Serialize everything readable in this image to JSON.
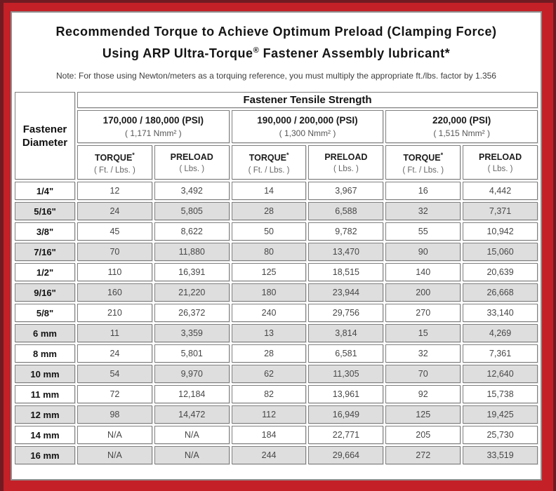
{
  "colors": {
    "frame_red": "#c32127",
    "frame_maroon": "#701b22",
    "panel_border_gray": "#8f8f8f",
    "cell_border_gray": "#7f7f7f",
    "header_gray": "#d9d9d9",
    "stripe_gray": "#dedede"
  },
  "title": {
    "line1": "Recommended Torque to Achieve Optimum Preload (Clamping Force)",
    "line2_pre": "Using ARP Ultra-Torque",
    "line2_reg": "®",
    "line2_post": " Fastener Assembly lubricant*"
  },
  "note": "Note: For those using Newton/meters as a torquing reference, you must multiply the appropriate ft./lbs. factor by 1.356",
  "table": {
    "corner_header": {
      "line1": "Fastener",
      "line2": "Diameter"
    },
    "tensile_header": "Fastener Tensile Strength",
    "groups": [
      {
        "psi": "170,000 / 180,000 (PSI)",
        "nmm": "( 1,171 Nmm² )"
      },
      {
        "psi": "190,000 / 200,000 (PSI)",
        "nmm": "( 1,300 Nmm² )"
      },
      {
        "psi": "220,000 (PSI)",
        "nmm": "( 1,515 Nmm² )"
      }
    ],
    "col_headers": {
      "torque_label": "TORQUE",
      "torque_star": "*",
      "torque_sub": "( Ft. / Lbs. )",
      "preload_label": "PRELOAD",
      "preload_sub": "( Lbs. )"
    },
    "rows": [
      {
        "diameter": "1/4\"",
        "values": [
          "12",
          "3,492",
          "14",
          "3,967",
          "16",
          "4,442"
        ]
      },
      {
        "diameter": "5/16\"",
        "values": [
          "24",
          "5,805",
          "28",
          "6,588",
          "32",
          "7,371"
        ]
      },
      {
        "diameter": "3/8\"",
        "values": [
          "45",
          "8,622",
          "50",
          "9,782",
          "55",
          "10,942"
        ]
      },
      {
        "diameter": "7/16\"",
        "values": [
          "70",
          "11,880",
          "80",
          "13,470",
          "90",
          "15,060"
        ]
      },
      {
        "diameter": "1/2\"",
        "values": [
          "110",
          "16,391",
          "125",
          "18,515",
          "140",
          "20,639"
        ]
      },
      {
        "diameter": "9/16\"",
        "values": [
          "160",
          "21,220",
          "180",
          "23,944",
          "200",
          "26,668"
        ]
      },
      {
        "diameter": "5/8\"",
        "values": [
          "210",
          "26,372",
          "240",
          "29,756",
          "270",
          "33,140"
        ]
      },
      {
        "diameter": "6 mm",
        "values": [
          "11",
          "3,359",
          "13",
          "3,814",
          "15",
          "4,269"
        ]
      },
      {
        "diameter": "8 mm",
        "values": [
          "24",
          "5,801",
          "28",
          "6,581",
          "32",
          "7,361"
        ]
      },
      {
        "diameter": "10 mm",
        "values": [
          "54",
          "9,970",
          "62",
          "11,305",
          "70",
          "12,640"
        ]
      },
      {
        "diameter": "11 mm",
        "values": [
          "72",
          "12,184",
          "82",
          "13,961",
          "92",
          "15,738"
        ]
      },
      {
        "diameter": "12 mm",
        "values": [
          "98",
          "14,472",
          "112",
          "16,949",
          "125",
          "19,425"
        ]
      },
      {
        "diameter": "14 mm",
        "values": [
          "N/A",
          "N/A",
          "184",
          "22,771",
          "205",
          "25,730"
        ]
      },
      {
        "diameter": "16 mm",
        "values": [
          "N/A",
          "N/A",
          "244",
          "29,664",
          "272",
          "33,519"
        ]
      }
    ]
  }
}
